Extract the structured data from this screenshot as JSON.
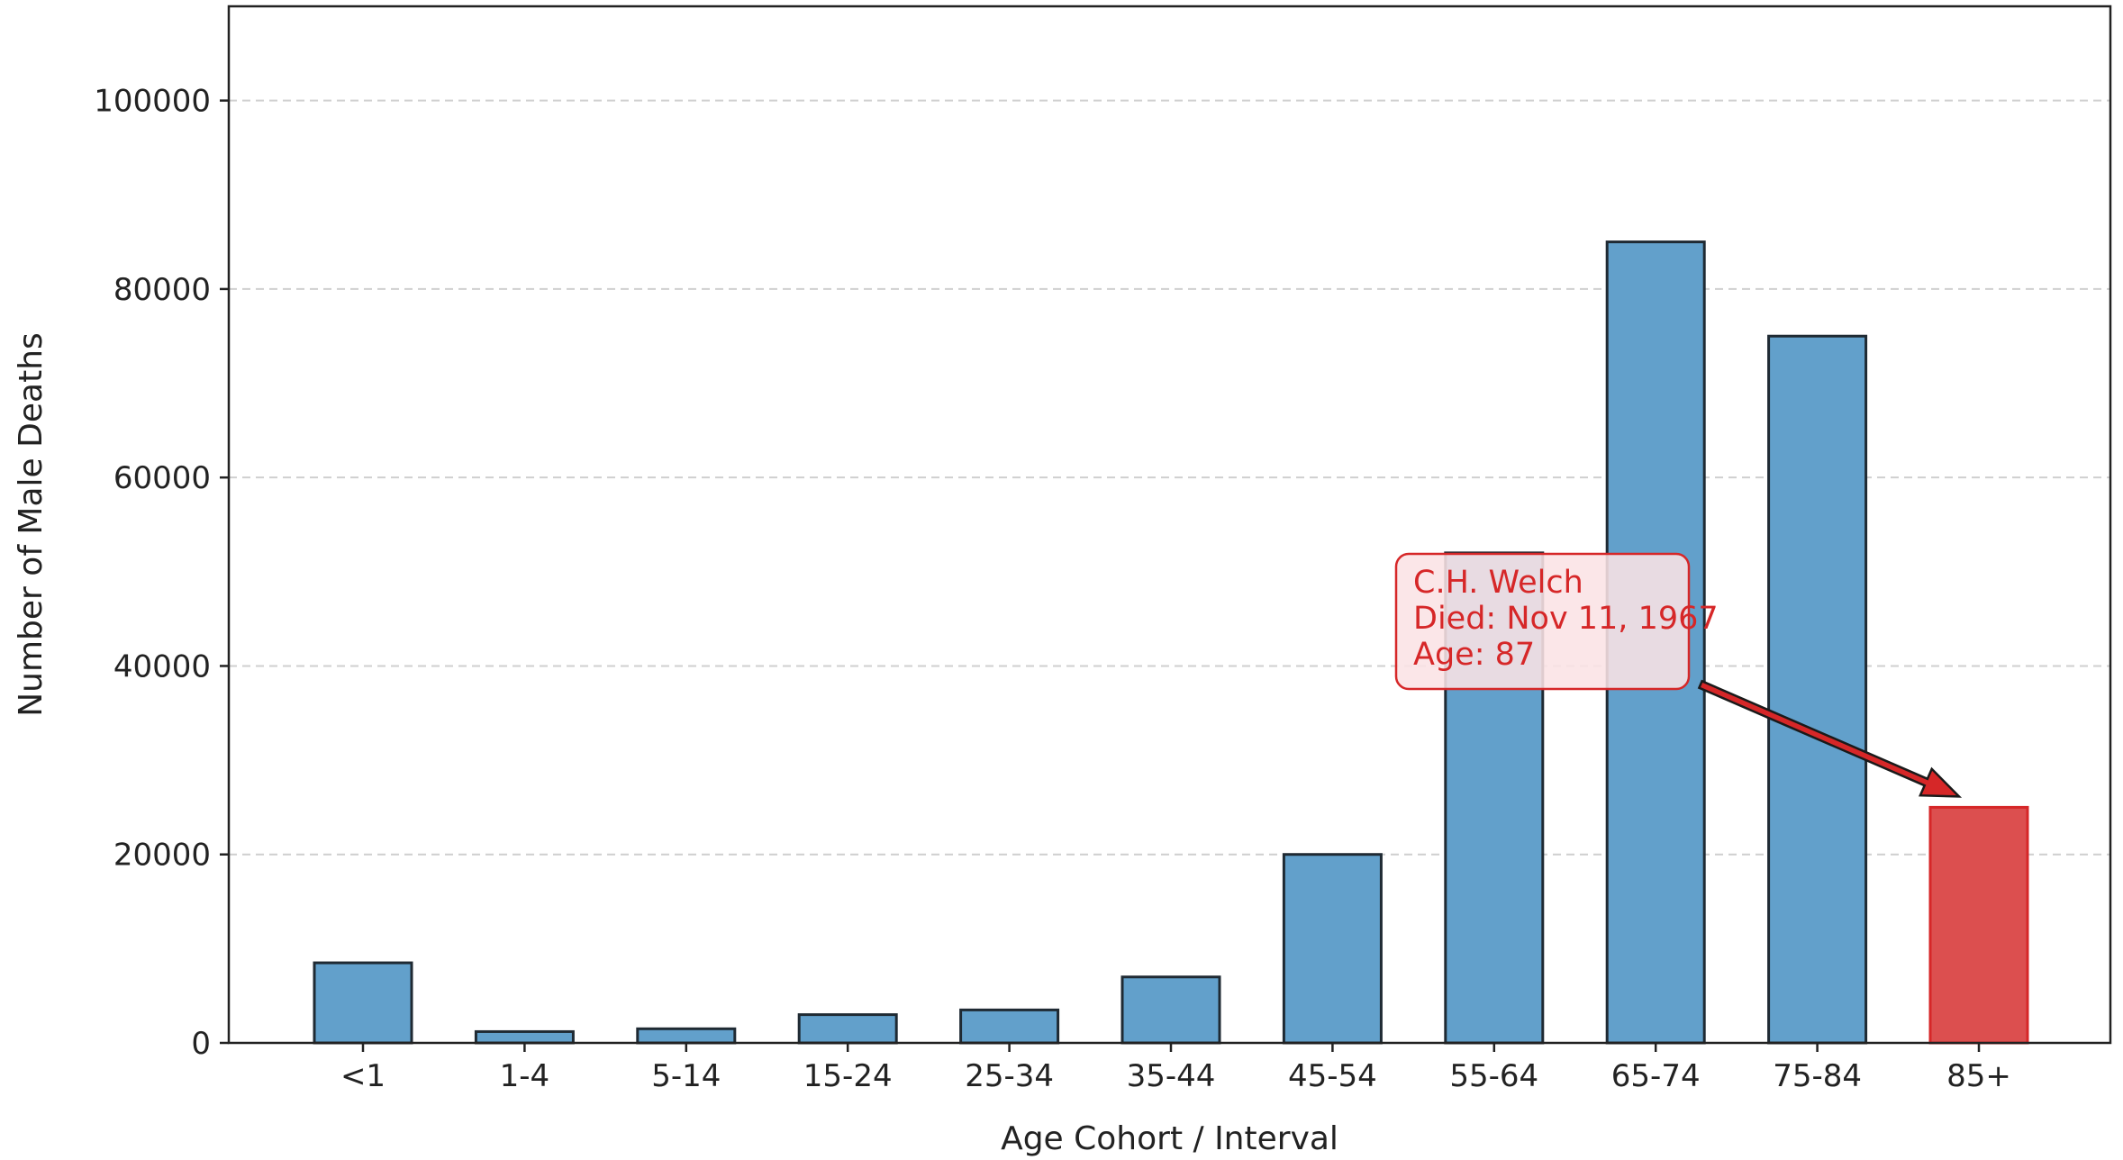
{
  "chart_data": {
    "type": "bar",
    "title": "",
    "xlabel": "Age Cohort / Interval",
    "ylabel": "Number of Male Deaths",
    "categories": [
      "<1",
      "1-4",
      "5-14",
      "15-24",
      "25-34",
      "35-44",
      "45-54",
      "55-64",
      "65-74",
      "75-84",
      "85+"
    ],
    "values": [
      8500,
      1200,
      1500,
      3000,
      3500,
      7000,
      20000,
      52000,
      85000,
      75000,
      25000
    ],
    "highlight_category": "85+",
    "ylim": [
      0,
      110000
    ],
    "yticks": [
      0,
      20000,
      40000,
      60000,
      80000,
      100000
    ],
    "ytick_labels": [
      "0",
      "20000",
      "40000",
      "60000",
      "80000",
      "100000"
    ],
    "grid": "horizontal-dashed",
    "colors": {
      "bar": "#62a0cb",
      "bar_edge": "#1f2a33",
      "highlight": "#dc4f4f",
      "highlight_edge": "#d62728",
      "annotation": "#d62728",
      "annotation_box_fill": "#fbe3e5",
      "grid": "#cfcfcf",
      "axis": "#222222"
    },
    "annotation": {
      "lines": [
        "C.H. Welch",
        "Died: Nov 11, 1967",
        "Age: 87"
      ],
      "target_category": "85+",
      "target_value": 25000
    }
  }
}
